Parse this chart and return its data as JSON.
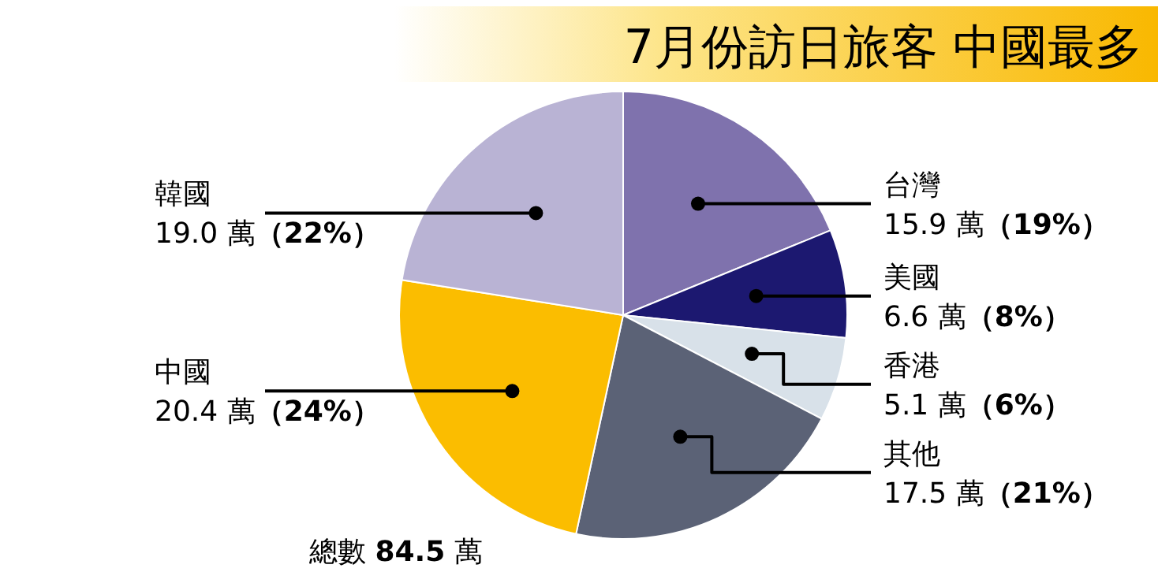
{
  "chart_data": {
    "type": "pie",
    "title": "7月份訪日旅客 中國最多",
    "categories": [
      "台灣",
      "美國",
      "香港",
      "其他",
      "中國",
      "韓國"
    ],
    "values": [
      15.9,
      6.6,
      5.1,
      17.5,
      20.4,
      19.0
    ],
    "colors": [
      "#7f72ad",
      "#1c1870",
      "#d8e1e9",
      "#5b6276",
      "#fbbd00",
      "#b9b3d4"
    ],
    "value_labels": [
      "15.9 萬（19%）",
      "6.6 萬（8%）",
      "5.1 萬（6%）",
      "17.5 萬（21%）",
      "20.4 萬（24%）",
      "19.0 萬（22%）"
    ],
    "annotations": [
      "總數 84.5 萬"
    ]
  }
}
